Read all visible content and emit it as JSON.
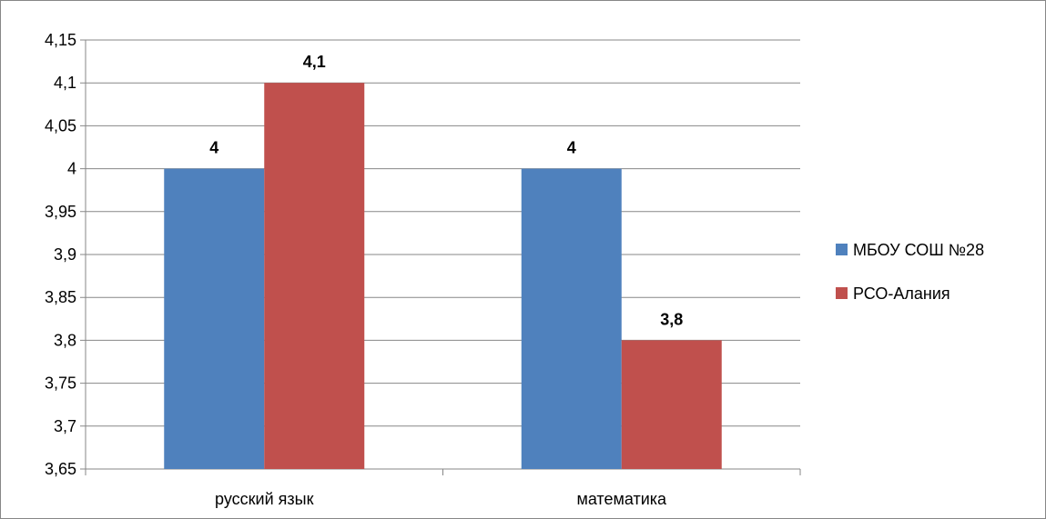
{
  "chart_data": {
    "type": "bar",
    "categories": [
      "русский язык",
      "математика"
    ],
    "series": [
      {
        "name": "МБОУ СОШ №28",
        "values": [
          4,
          4
        ],
        "labels": [
          "4",
          "4"
        ],
        "color": "#4F81BD"
      },
      {
        "name": "РСО-Алания",
        "values": [
          4.1,
          3.8
        ],
        "labels": [
          "4,1",
          "3,8"
        ],
        "color": "#C0504D"
      }
    ],
    "ylim": [
      3.65,
      4.15
    ],
    "yticks": [
      "3,65",
      "3,7",
      "3,75",
      "3,8",
      "3,85",
      "3,9",
      "3,95",
      "4",
      "4,05",
      "4,1",
      "4,15"
    ],
    "grid": true,
    "legend_position": "right",
    "title": "",
    "xlabel": "",
    "ylabel": ""
  }
}
